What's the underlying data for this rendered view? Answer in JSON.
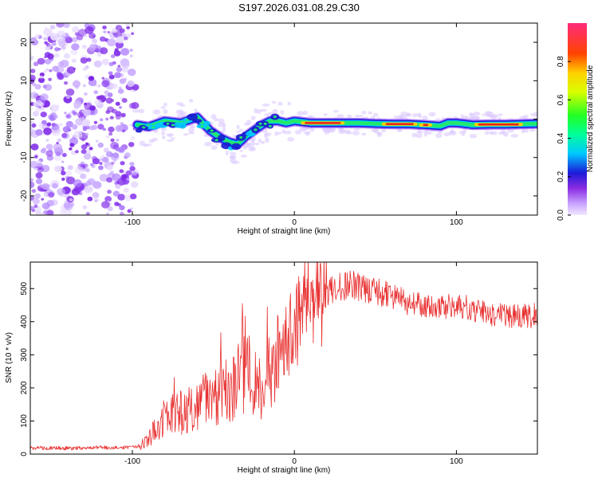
{
  "title": "S197.2026.031.08.29.C30",
  "chart_data": [
    {
      "type": "heatmap",
      "name": "spectrogram",
      "xlabel": "Height of straight line (km)",
      "ylabel": "Frequency (Hz)",
      "xlim": [
        -163,
        150
      ],
      "ylim": [
        -25,
        25
      ],
      "xticks": [
        -100,
        0,
        100
      ],
      "yticks": [
        -20,
        -10,
        0,
        10,
        20
      ],
      "xtick_labels": [
        "-100",
        "0",
        "100"
      ],
      "ytick_labels": [
        "-20",
        "-10",
        "0",
        "10",
        "20"
      ],
      "ridge_x": [
        -97,
        -90,
        -80,
        -70,
        -60,
        -52,
        -45,
        -40,
        -35,
        -30,
        -25,
        -20,
        -15,
        -10,
        -5,
        0,
        10,
        20,
        30,
        40,
        50,
        60,
        70,
        80,
        90,
        95,
        100,
        110,
        120,
        130,
        140,
        150
      ],
      "ridge_freq": [
        -1.5,
        -2,
        -0.5,
        -1,
        0.5,
        -3,
        -5,
        -6,
        -6.5,
        -4.5,
        -3,
        -1.5,
        -0.5,
        -0.5,
        -1,
        -0.5,
        -1,
        -1,
        -1,
        -1,
        -1.2,
        -1.3,
        -1.3,
        -1.5,
        -1.8,
        -1,
        -1,
        -1.5,
        -1.4,
        -1.4,
        -1.3,
        -1.2
      ],
      "colorbar": {
        "label": "Normalized spectral amplitude",
        "range": [
          0,
          1
        ],
        "ticks": [
          0.0,
          0.2,
          0.4,
          0.6,
          0.8
        ],
        "tick_labels": [
          "0.0",
          "0.2",
          "0.4",
          "0.6",
          "0.8"
        ]
      }
    },
    {
      "type": "line",
      "name": "snr",
      "xlabel": "Height of straight line (km)",
      "ylabel": "SNR (10 * v/v)",
      "xlim": [
        -163,
        150
      ],
      "ylim": [
        0,
        580
      ],
      "xticks": [
        -100,
        0,
        100
      ],
      "yticks": [
        0,
        100,
        200,
        300,
        400,
        500
      ],
      "xtick_labels": [
        "-100",
        "0",
        "100"
      ],
      "ytick_labels": [
        "0",
        "100",
        "200",
        "300",
        "400",
        "500"
      ],
      "series": [
        {
          "name": "SNR",
          "color": "#e83030",
          "x": [
            -163,
            -140,
            -120,
            -100,
            -95,
            -90,
            -85,
            -80,
            -70,
            -60,
            -50,
            -40,
            -35,
            -30,
            -25,
            -20,
            -15,
            -10,
            -5,
            0,
            5,
            10,
            20,
            30,
            40,
            50,
            60,
            70,
            80,
            90,
            100,
            110,
            120,
            130,
            140,
            150
          ],
          "values": [
            18,
            18,
            20,
            20,
            25,
            45,
            80,
            110,
            130,
            150,
            170,
            200,
            220,
            260,
            210,
            200,
            250,
            300,
            340,
            380,
            420,
            450,
            490,
            510,
            505,
            490,
            480,
            460,
            455,
            450,
            445,
            440,
            425,
            420,
            415,
            420
          ]
        }
      ]
    }
  ]
}
